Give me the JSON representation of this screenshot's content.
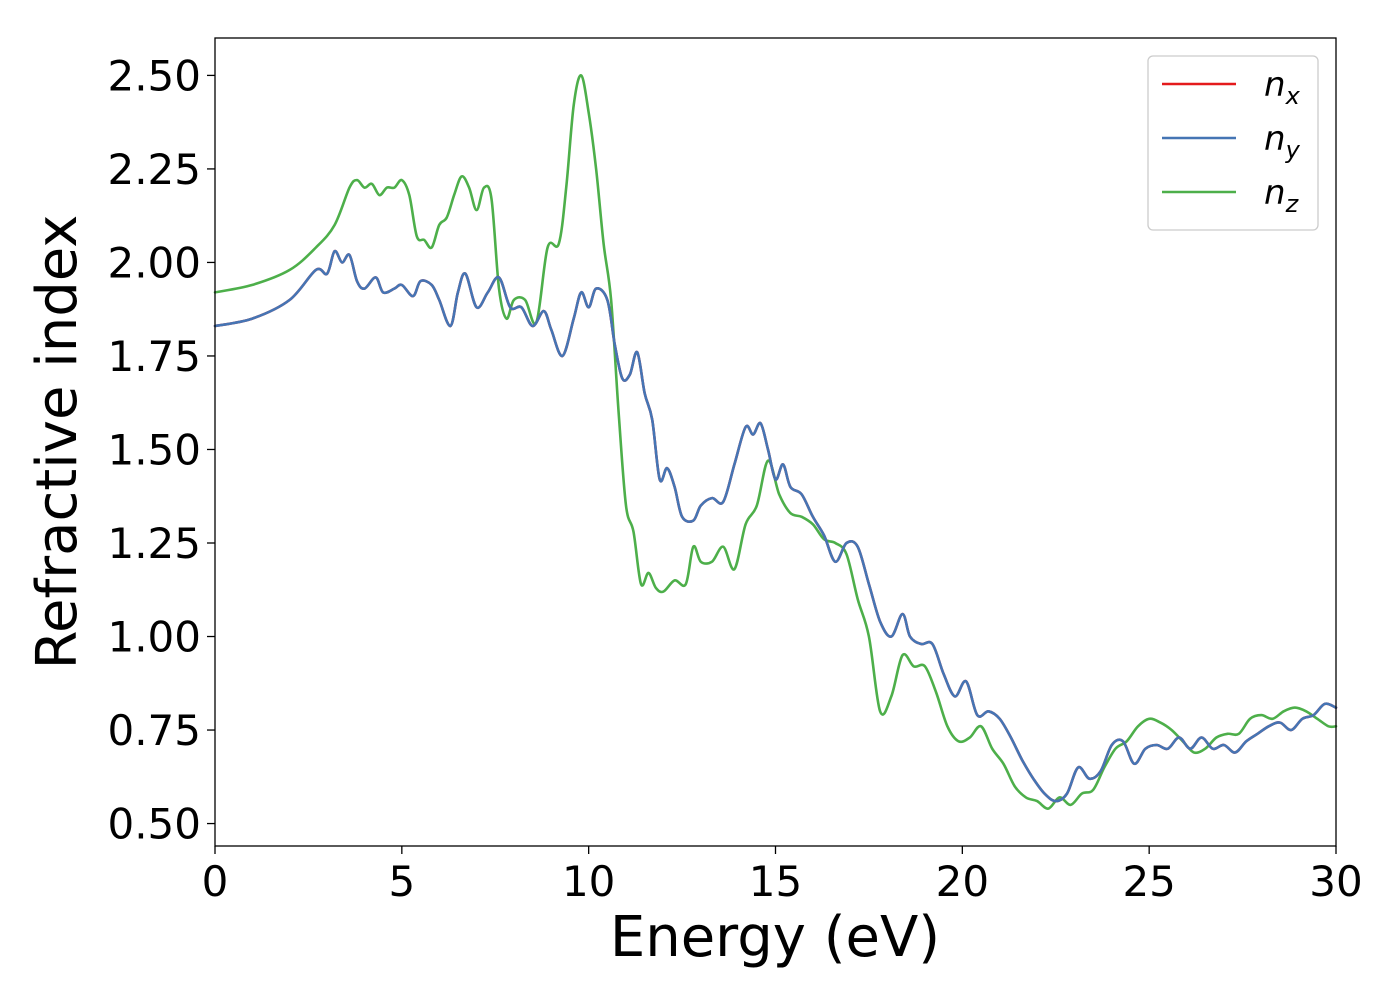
{
  "chart_data": {
    "type": "line",
    "xlabel": "Energy (eV)",
    "ylabel": "Refractive index",
    "xlim": [
      0,
      30
    ],
    "ylim": [
      0.44,
      2.6
    ],
    "xticks": [
      0,
      5,
      10,
      15,
      20,
      25,
      30
    ],
    "xtick_labels": [
      "0",
      "5",
      "10",
      "15",
      "20",
      "25",
      "30"
    ],
    "yticks": [
      0.5,
      0.75,
      1.0,
      1.25,
      1.5,
      1.75,
      2.0,
      2.25,
      2.5
    ],
    "ytick_labels": [
      "0.50",
      "0.75",
      "1.00",
      "1.25",
      "1.50",
      "1.75",
      "2.00",
      "2.25",
      "2.50"
    ],
    "grid": false,
    "legend_position": "top-right",
    "series": [
      {
        "name": "x",
        "color": "#e41a1c",
        "x": [
          0,
          1,
          2,
          2.7,
          3.0,
          3.2,
          3.4,
          3.6,
          3.8,
          4.0,
          4.3,
          4.5,
          4.8,
          5.0,
          5.3,
          5.5,
          5.8,
          6.0,
          6.3,
          6.5,
          6.7,
          7.0,
          7.3,
          7.6,
          7.9,
          8.2,
          8.5,
          8.8,
          9.0,
          9.3,
          9.6,
          9.8,
          10.0,
          10.2,
          10.5,
          10.7,
          10.9,
          11.1,
          11.3,
          11.5,
          11.7,
          11.9,
          12.1,
          12.3,
          12.5,
          12.8,
          13.0,
          13.3,
          13.6,
          13.9,
          14.2,
          14.4,
          14.6,
          14.8,
          15.0,
          15.2,
          15.4,
          15.7,
          16.0,
          16.3,
          16.6,
          16.9,
          17.2,
          17.5,
          17.8,
          18.1,
          18.4,
          18.6,
          18.9,
          19.2,
          19.5,
          19.8,
          20.1,
          20.4,
          20.7,
          21.0,
          21.3,
          21.6,
          21.9,
          22.2,
          22.5,
          22.8,
          23.1,
          23.4,
          23.7,
          24.0,
          24.3,
          24.6,
          24.9,
          25.2,
          25.5,
          25.8,
          26.1,
          26.4,
          26.7,
          27.0,
          27.3,
          27.6,
          27.9,
          28.2,
          28.5,
          28.8,
          29.1,
          29.4,
          29.7,
          30.0
        ],
        "values": [
          1.83,
          1.85,
          1.9,
          1.98,
          1.97,
          2.03,
          2.0,
          2.02,
          1.95,
          1.93,
          1.96,
          1.92,
          1.93,
          1.94,
          1.91,
          1.95,
          1.94,
          1.9,
          1.83,
          1.92,
          1.97,
          1.88,
          1.92,
          1.96,
          1.88,
          1.88,
          1.83,
          1.87,
          1.82,
          1.75,
          1.85,
          1.92,
          1.88,
          1.93,
          1.9,
          1.78,
          1.69,
          1.7,
          1.76,
          1.65,
          1.58,
          1.42,
          1.45,
          1.4,
          1.32,
          1.31,
          1.35,
          1.37,
          1.36,
          1.46,
          1.56,
          1.54,
          1.57,
          1.5,
          1.42,
          1.46,
          1.4,
          1.38,
          1.32,
          1.27,
          1.2,
          1.25,
          1.24,
          1.14,
          1.04,
          1.0,
          1.06,
          1.0,
          0.98,
          0.98,
          0.9,
          0.84,
          0.88,
          0.79,
          0.8,
          0.78,
          0.73,
          0.67,
          0.62,
          0.58,
          0.56,
          0.58,
          0.65,
          0.62,
          0.64,
          0.71,
          0.72,
          0.66,
          0.7,
          0.71,
          0.7,
          0.73,
          0.7,
          0.73,
          0.7,
          0.71,
          0.69,
          0.72,
          0.74,
          0.76,
          0.77,
          0.75,
          0.78,
          0.79,
          0.82,
          0.81
        ]
      },
      {
        "name": "y",
        "color": "#4575b4",
        "x": [
          0,
          1,
          2,
          2.7,
          3.0,
          3.2,
          3.4,
          3.6,
          3.8,
          4.0,
          4.3,
          4.5,
          4.8,
          5.0,
          5.3,
          5.5,
          5.8,
          6.0,
          6.3,
          6.5,
          6.7,
          7.0,
          7.3,
          7.6,
          7.9,
          8.2,
          8.5,
          8.8,
          9.0,
          9.3,
          9.6,
          9.8,
          10.0,
          10.2,
          10.5,
          10.7,
          10.9,
          11.1,
          11.3,
          11.5,
          11.7,
          11.9,
          12.1,
          12.3,
          12.5,
          12.8,
          13.0,
          13.3,
          13.6,
          13.9,
          14.2,
          14.4,
          14.6,
          14.8,
          15.0,
          15.2,
          15.4,
          15.7,
          16.0,
          16.3,
          16.6,
          16.9,
          17.2,
          17.5,
          17.8,
          18.1,
          18.4,
          18.6,
          18.9,
          19.2,
          19.5,
          19.8,
          20.1,
          20.4,
          20.7,
          21.0,
          21.3,
          21.6,
          21.9,
          22.2,
          22.5,
          22.8,
          23.1,
          23.4,
          23.7,
          24.0,
          24.3,
          24.6,
          24.9,
          25.2,
          25.5,
          25.8,
          26.1,
          26.4,
          26.7,
          27.0,
          27.3,
          27.6,
          27.9,
          28.2,
          28.5,
          28.8,
          29.1,
          29.4,
          29.7,
          30.0
        ],
        "values": [
          1.83,
          1.85,
          1.9,
          1.98,
          1.97,
          2.03,
          2.0,
          2.02,
          1.95,
          1.93,
          1.96,
          1.92,
          1.93,
          1.94,
          1.91,
          1.95,
          1.94,
          1.9,
          1.83,
          1.92,
          1.97,
          1.88,
          1.92,
          1.96,
          1.88,
          1.88,
          1.83,
          1.87,
          1.82,
          1.75,
          1.85,
          1.92,
          1.88,
          1.93,
          1.9,
          1.78,
          1.69,
          1.7,
          1.76,
          1.65,
          1.58,
          1.42,
          1.45,
          1.4,
          1.32,
          1.31,
          1.35,
          1.37,
          1.36,
          1.46,
          1.56,
          1.54,
          1.57,
          1.5,
          1.42,
          1.46,
          1.4,
          1.38,
          1.32,
          1.27,
          1.2,
          1.25,
          1.24,
          1.14,
          1.04,
          1.0,
          1.06,
          1.0,
          0.98,
          0.98,
          0.9,
          0.84,
          0.88,
          0.79,
          0.8,
          0.78,
          0.73,
          0.67,
          0.62,
          0.58,
          0.56,
          0.58,
          0.65,
          0.62,
          0.64,
          0.71,
          0.72,
          0.66,
          0.7,
          0.71,
          0.7,
          0.73,
          0.7,
          0.73,
          0.7,
          0.71,
          0.69,
          0.72,
          0.74,
          0.76,
          0.77,
          0.75,
          0.78,
          0.79,
          0.82,
          0.81
        ]
      },
      {
        "name": "z",
        "color": "#4daf4a",
        "x": [
          0,
          1,
          2,
          2.7,
          3.2,
          3.6,
          3.8,
          4.0,
          4.2,
          4.4,
          4.6,
          4.8,
          5.0,
          5.2,
          5.4,
          5.6,
          5.8,
          6.0,
          6.2,
          6.4,
          6.6,
          6.8,
          7.0,
          7.2,
          7.4,
          7.6,
          7.8,
          8.0,
          8.3,
          8.6,
          8.9,
          9.2,
          9.4,
          9.6,
          9.8,
          10.0,
          10.2,
          10.4,
          10.6,
          10.8,
          11.0,
          11.2,
          11.4,
          11.6,
          11.8,
          12.0,
          12.3,
          12.6,
          12.8,
          13.0,
          13.3,
          13.6,
          13.9,
          14.2,
          14.5,
          14.8,
          15.1,
          15.4,
          15.7,
          16.0,
          16.3,
          16.6,
          16.9,
          17.2,
          17.5,
          17.8,
          18.1,
          18.4,
          18.7,
          19.0,
          19.3,
          19.6,
          19.9,
          20.2,
          20.5,
          20.8,
          21.1,
          21.4,
          21.7,
          22.0,
          22.3,
          22.6,
          22.9,
          23.2,
          23.5,
          23.8,
          24.1,
          24.4,
          24.7,
          25.0,
          25.3,
          25.6,
          25.9,
          26.2,
          26.5,
          26.8,
          27.1,
          27.4,
          27.7,
          28.0,
          28.3,
          28.6,
          28.9,
          29.2,
          29.5,
          29.8,
          30.0
        ],
        "values": [
          1.92,
          1.94,
          1.98,
          2.04,
          2.1,
          2.2,
          2.22,
          2.2,
          2.21,
          2.18,
          2.2,
          2.2,
          2.22,
          2.18,
          2.07,
          2.06,
          2.04,
          2.1,
          2.12,
          2.18,
          2.23,
          2.2,
          2.14,
          2.2,
          2.17,
          1.93,
          1.85,
          1.9,
          1.9,
          1.84,
          2.04,
          2.05,
          2.2,
          2.42,
          2.5,
          2.4,
          2.25,
          2.05,
          1.9,
          1.6,
          1.35,
          1.28,
          1.14,
          1.17,
          1.13,
          1.12,
          1.15,
          1.14,
          1.24,
          1.2,
          1.2,
          1.24,
          1.18,
          1.3,
          1.35,
          1.47,
          1.38,
          1.33,
          1.32,
          1.3,
          1.26,
          1.25,
          1.22,
          1.1,
          1.0,
          0.8,
          0.84,
          0.95,
          0.92,
          0.92,
          0.85,
          0.76,
          0.72,
          0.73,
          0.76,
          0.7,
          0.66,
          0.6,
          0.57,
          0.56,
          0.54,
          0.57,
          0.55,
          0.58,
          0.59,
          0.65,
          0.7,
          0.72,
          0.76,
          0.78,
          0.77,
          0.75,
          0.72,
          0.69,
          0.7,
          0.73,
          0.74,
          0.74,
          0.78,
          0.79,
          0.78,
          0.8,
          0.81,
          0.8,
          0.78,
          0.76,
          0.76
        ]
      }
    ]
  }
}
